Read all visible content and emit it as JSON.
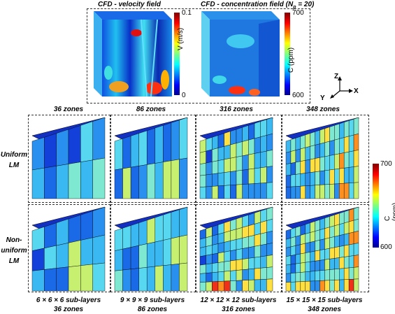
{
  "cfd": {
    "velocity_title": "CFD - velocity field",
    "concentration_title_prefix": "CFD - concentration field (N",
    "concentration_sub": "p",
    "concentration_title_suffix": " = 20)",
    "velocity_bar": {
      "max": "0.1",
      "min": "0",
      "label": "V (m/s)"
    },
    "concentration_bar": {
      "max": "700",
      "min": "600",
      "label": "C (ppm)"
    }
  },
  "axes": {
    "z": "Z",
    "y": "Y",
    "x": "X"
  },
  "columns": [
    "36 zones",
    "86 zones",
    "316 zones",
    "348 zones"
  ],
  "rows": [
    {
      "line1": "Uniform",
      "line2": "LM"
    },
    {
      "line1": "Non-",
      "line2": "uniform",
      "line3": "LM"
    }
  ],
  "sublayers": [
    "6 × 6 × 6 sub-layers",
    "9 × 9 × 9 sub-layers",
    "12 × 12 × 12 sub-layers",
    "15 × 15 × 15 sub-layers"
  ],
  "bottom_zones": [
    "36 zones",
    "86 zones",
    "316 zones",
    "348 zones"
  ],
  "lm_bar": {
    "max": "700",
    "min": "600",
    "label": "C (ppm)"
  },
  "colors": {
    "low": "#00008f",
    "mid": "#3ff",
    "high": "#ff0000"
  }
}
